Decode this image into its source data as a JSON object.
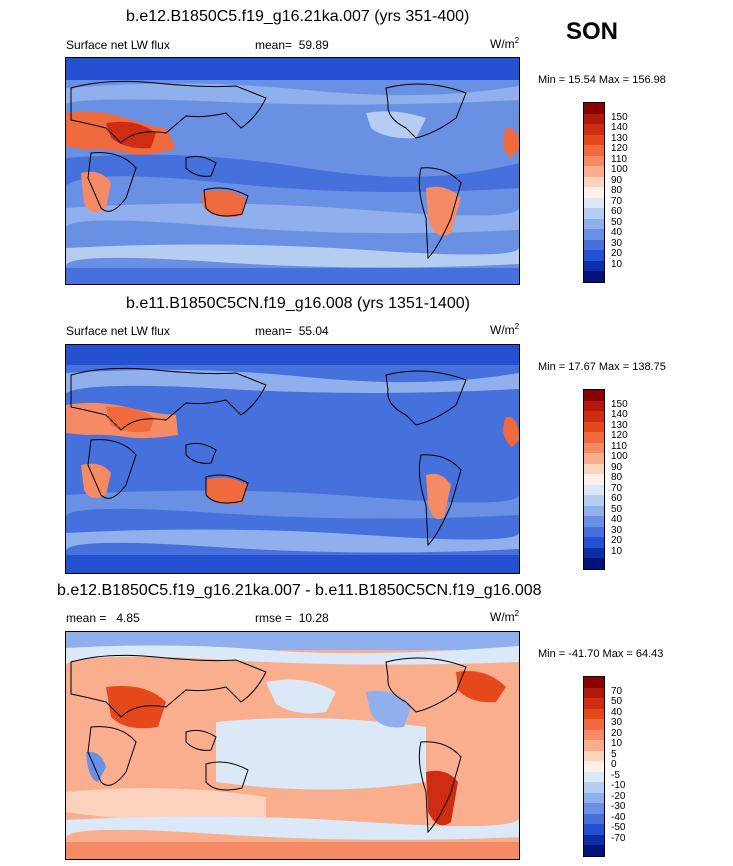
{
  "season": "SON",
  "panels": [
    {
      "title": "b.e12.B1850C5.f19_g16.21ka.007 (yrs 351-400)",
      "variable": "Surface net LW flux",
      "stat_label": "mean=",
      "stat_value": "59.89",
      "units_base": "W/m",
      "units_exp": "2",
      "min_label": "Min =",
      "min_value": "15.54",
      "max_label": "Max =",
      "max_value": "156.98",
      "colorbar_labels": [
        "150",
        "140",
        "130",
        "120",
        "110",
        "100",
        "90",
        "80",
        "70",
        "60",
        "50",
        "40",
        "30",
        "20",
        "10"
      ],
      "colorbar_colors": [
        "#8b0000",
        "#b2180b",
        "#cf2d12",
        "#e4481b",
        "#f06a3d",
        "#f58b64",
        "#f9ae8e",
        "#fbd2bd",
        "#fdf0e6",
        "#dbe8f8",
        "#b6cdf2",
        "#8fb0ec",
        "#6a90e4",
        "#4670dc",
        "#2550d2",
        "#0a2ea8",
        "#00137a"
      ]
    },
    {
      "title": "b.e11.B1850C5CN.f19_g16.008 (yrs 1351-1400)",
      "variable": "Surface net LW flux",
      "stat_label": "mean=",
      "stat_value": "55.04",
      "units_base": "W/m",
      "units_exp": "2",
      "min_label": "Min =",
      "min_value": "17.67",
      "max_label": "Max =",
      "max_value": "138.75",
      "colorbar_labels": [
        "150",
        "140",
        "130",
        "120",
        "110",
        "100",
        "90",
        "80",
        "70",
        "60",
        "50",
        "40",
        "30",
        "20",
        "10"
      ],
      "colorbar_colors": [
        "#8b0000",
        "#b2180b",
        "#cf2d12",
        "#e4481b",
        "#f06a3d",
        "#f58b64",
        "#f9ae8e",
        "#fbd2bd",
        "#fdf0e6",
        "#dbe8f8",
        "#b6cdf2",
        "#8fb0ec",
        "#6a90e4",
        "#4670dc",
        "#2550d2",
        "#0a2ea8",
        "#00137a"
      ]
    },
    {
      "title": "b.e12.B1850C5.f19_g16.21ka.007 - b.e11.B1850C5CN.f19_g16.008",
      "variable": "",
      "stat_label": "mean =",
      "stat_value": "4.85",
      "rmse_label": "rmse =",
      "rmse_value": "10.28",
      "units_base": "W/m",
      "units_exp": "2",
      "min_label": "Min =",
      "min_value": "-41.70",
      "max_label": "Max =",
      "max_value": "64.43",
      "colorbar_labels": [
        "70",
        "50",
        "40",
        "30",
        "20",
        "10",
        "5",
        "0",
        "-5",
        "-10",
        "-20",
        "-30",
        "-40",
        "-50",
        "-70"
      ],
      "colorbar_colors": [
        "#8b0000",
        "#b2180b",
        "#cf2d12",
        "#e4481b",
        "#f06a3d",
        "#f58b64",
        "#f9ae8e",
        "#fbd2bd",
        "#fdf0e6",
        "#dbe8f8",
        "#b6cdf2",
        "#8fb0ec",
        "#6a90e4",
        "#4670dc",
        "#2550d2",
        "#0a2ea8",
        "#00137a"
      ]
    }
  ]
}
